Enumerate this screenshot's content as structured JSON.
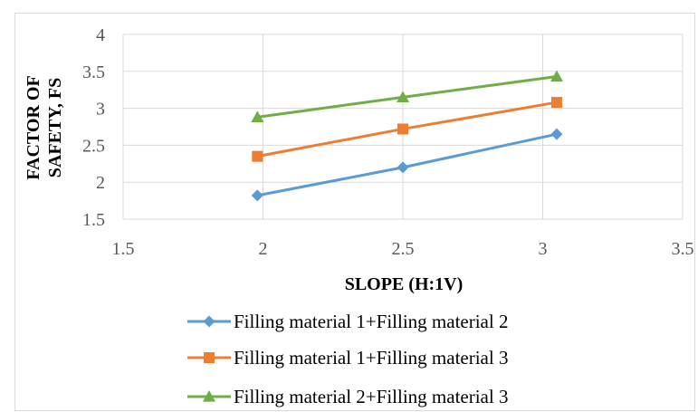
{
  "chart_data": {
    "type": "line",
    "title": "",
    "xlabel": "SLOPE (H:1V)",
    "ylabel_lines": [
      "FACTOR OF",
      "SAFETY, FS"
    ],
    "xlim": [
      1.5,
      3.5
    ],
    "ylim": [
      1.5,
      4
    ],
    "xticks": [
      1.5,
      2,
      2.5,
      3,
      3.5
    ],
    "xtick_labels": [
      "1.5",
      "2",
      "2.5",
      "3",
      "3.5"
    ],
    "yticks": [
      1.5,
      2,
      2.5,
      3,
      3.5,
      4
    ],
    "ytick_labels": [
      "1.5",
      "2",
      "2.5",
      "3",
      "3.5",
      "4"
    ],
    "grid": true,
    "legend_position": "bottom",
    "series": [
      {
        "name": "Filling material 1+Filling material 2",
        "color": "#5b9bd5",
        "marker": "diamond",
        "x": [
          1.98,
          2.5,
          3.05
        ],
        "y": [
          1.82,
          2.2,
          2.65
        ]
      },
      {
        "name": "Filling material 1+Filling material 3",
        "color": "#ed7d31",
        "marker": "square",
        "x": [
          1.98,
          2.5,
          3.05
        ],
        "y": [
          2.35,
          2.72,
          3.08
        ]
      },
      {
        "name": "Filling material 2+Filling material 3",
        "color": "#70ad47",
        "marker": "triangle",
        "x": [
          1.98,
          2.5,
          3.05
        ],
        "y": [
          2.88,
          3.15,
          3.43
        ]
      }
    ]
  }
}
